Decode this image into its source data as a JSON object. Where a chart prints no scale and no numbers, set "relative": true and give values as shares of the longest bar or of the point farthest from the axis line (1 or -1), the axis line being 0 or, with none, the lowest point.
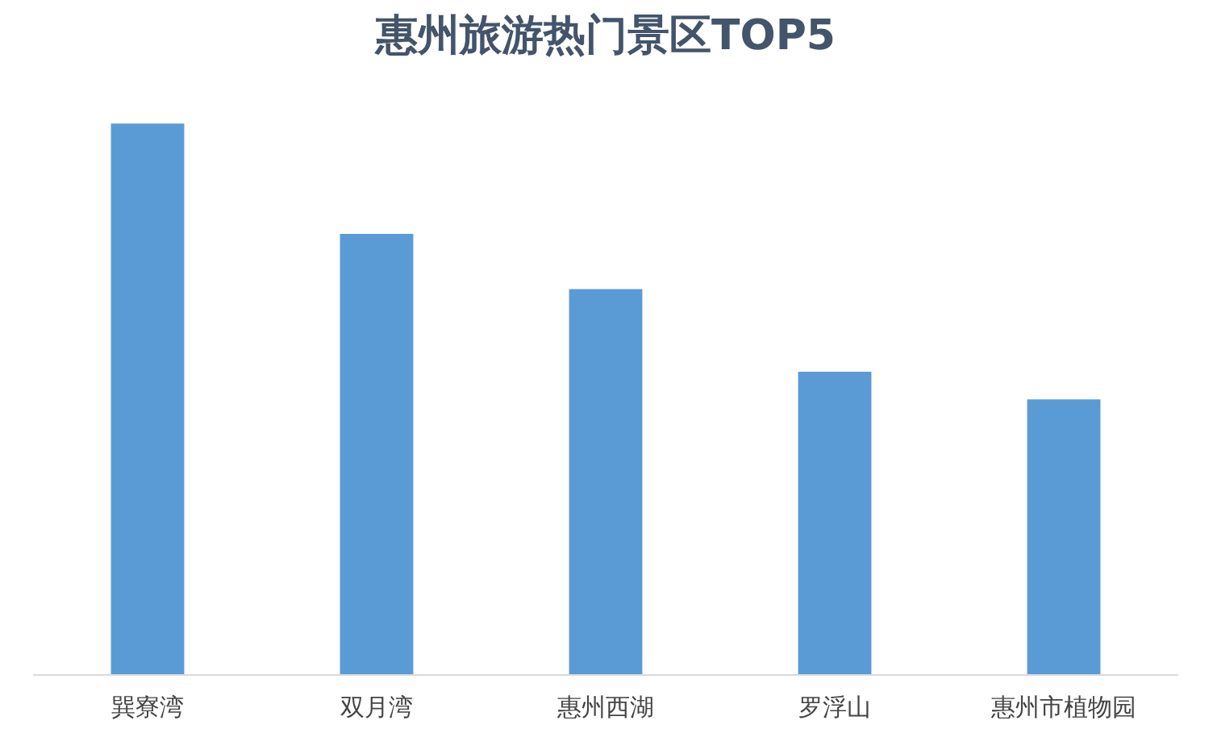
{
  "chart_data": {
    "type": "bar",
    "title": "惠州旅游热门景区TOP5",
    "categories": [
      "巽寮湾",
      "双月湾",
      "惠州西湖",
      "罗浮山",
      "惠州市植物园"
    ],
    "values": [
      1,
      0.8,
      0.7,
      0.55,
      0.5
    ],
    "color": "#5b9bd5",
    "relative": true,
    "grid": false
  }
}
